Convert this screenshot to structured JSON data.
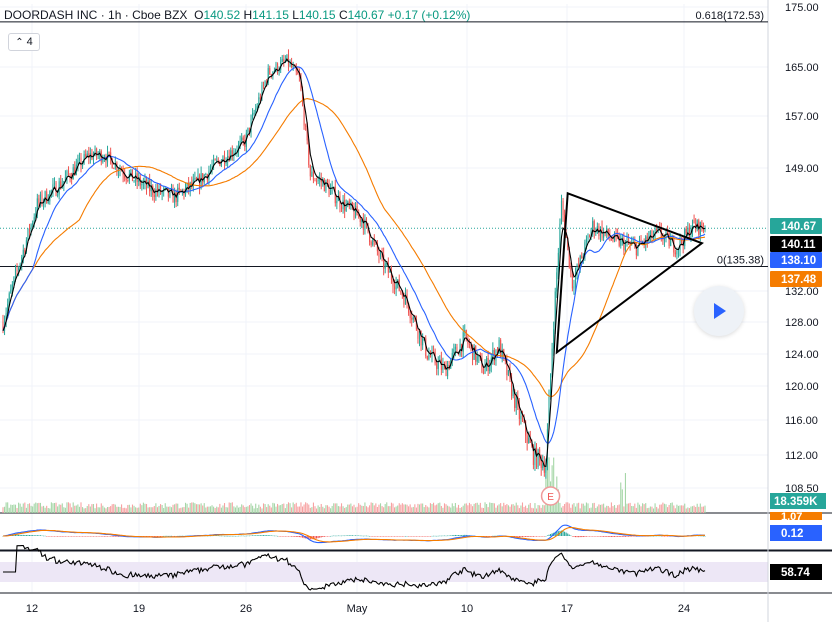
{
  "header": {
    "symbol": "DOORDASH INC",
    "interval": "1h",
    "exchange": "Cboe BZX",
    "sep": "·",
    "o_label": "O",
    "o": "140.52",
    "h_label": "H",
    "h": "141.15",
    "l_label": "L",
    "l": "140.15",
    "c_label": "C",
    "c": "140.67",
    "change": "+0.17 (+0.12%)"
  },
  "indicator_count": "4",
  "colors": {
    "up": "#26a69a",
    "down": "#ef5350",
    "ma_fast": "#000000",
    "ma_mid": "#2962ff",
    "ma_slow": "#f57c00",
    "rsi_band": "#ede7f6",
    "macd_line": "#2962ff",
    "signal_line": "#f57c00"
  },
  "chart_data": {
    "type": "candlestick",
    "xlabels": [
      "12",
      "19",
      "26",
      "May",
      "10",
      "17",
      "24"
    ],
    "y_ticks": [
      "175.00",
      "165.00",
      "157.00",
      "149.00",
      "132.00",
      "128.00",
      "124.00",
      "120.00",
      "116.00",
      "112.00",
      "108.50"
    ],
    "ylim": [
      108.5,
      175
    ],
    "fib_levels": [
      {
        "label": "0.618(172.53)",
        "value": 172.53
      },
      {
        "label": "0(135.38)",
        "value": 135.38
      }
    ],
    "price_labels": [
      {
        "text": "140.67",
        "value": 140.67,
        "color": "#26a69a",
        "text_color": "#ffffff"
      },
      {
        "text": "140.11",
        "value": 140.11,
        "color": "#000000",
        "text_color": "#ffffff"
      },
      {
        "text": "138.10",
        "value": 138.1,
        "color": "#2962ff",
        "text_color": "#ffffff"
      },
      {
        "text": "137.48",
        "value": 137.48,
        "color": "#f57c00",
        "text_color": "#ffffff"
      }
    ],
    "last_price": 140.67,
    "pattern": "symmetrical triangle",
    "earnings_marker": "E",
    "volume_label": "18.359K",
    "macd_value": "0.12",
    "macd_value_2": "1.07",
    "rsi_value": "58.74",
    "anchor_prices": [
      {
        "t": 0,
        "p": 128
      },
      {
        "t": 8,
        "p": 134
      },
      {
        "t": 22,
        "p": 144
      },
      {
        "t": 38,
        "p": 147
      },
      {
        "t": 55,
        "p": 151
      },
      {
        "t": 65,
        "p": 151
      },
      {
        "t": 80,
        "p": 148
      },
      {
        "t": 95,
        "p": 146
      },
      {
        "t": 110,
        "p": 145
      },
      {
        "t": 125,
        "p": 147
      },
      {
        "t": 138,
        "p": 150
      },
      {
        "t": 155,
        "p": 153
      },
      {
        "t": 170,
        "p": 164
      },
      {
        "t": 182,
        "p": 166
      },
      {
        "t": 190,
        "p": 163
      },
      {
        "t": 197,
        "p": 148
      },
      {
        "t": 205,
        "p": 147
      },
      {
        "t": 218,
        "p": 144
      },
      {
        "t": 230,
        "p": 142
      },
      {
        "t": 243,
        "p": 136
      },
      {
        "t": 258,
        "p": 131
      },
      {
        "t": 272,
        "p": 124
      },
      {
        "t": 283,
        "p": 122
      },
      {
        "t": 296,
        "p": 126
      },
      {
        "t": 308,
        "p": 122
      },
      {
        "t": 318,
        "p": 125
      },
      {
        "t": 330,
        "p": 117
      },
      {
        "t": 340,
        "p": 112
      },
      {
        "t": 348,
        "p": 111
      },
      {
        "t": 352,
        "p": 125
      },
      {
        "t": 358,
        "p": 144
      },
      {
        "t": 365,
        "p": 133
      },
      {
        "t": 378,
        "p": 141
      },
      {
        "t": 392,
        "p": 139
      },
      {
        "t": 406,
        "p": 138
      },
      {
        "t": 420,
        "p": 140
      },
      {
        "t": 432,
        "p": 138
      },
      {
        "t": 442,
        "p": 141
      },
      {
        "t": 450,
        "p": 140.67
      }
    ],
    "triangle": {
      "upper": [
        {
          "t": 362,
          "p": 145.5
        },
        {
          "t": 448,
          "p": 138.6
        }
      ],
      "lower": [
        {
          "t": 355,
          "p": 124.2
        },
        {
          "t": 448,
          "p": 138.6
        }
      ]
    },
    "n_bars": 451
  }
}
